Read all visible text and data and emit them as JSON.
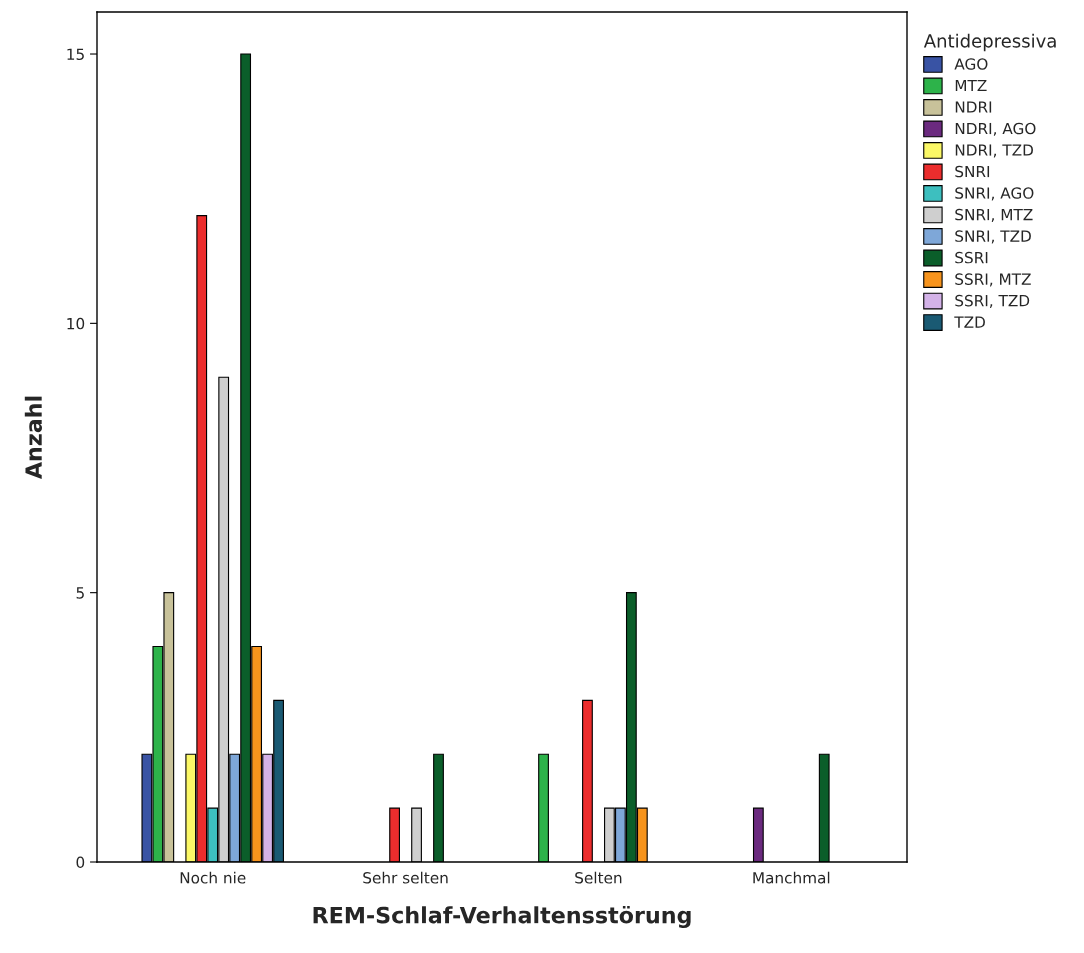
{
  "chart_data": {
    "type": "bar",
    "xlabel": "REM-Schlaf-Verhaltensstörung",
    "ylabel": "Anzahl",
    "legend_title": "Antidepressiva",
    "categories": [
      "Noch nie",
      "Sehr selten",
      "Selten",
      "Manchmal"
    ],
    "series": [
      {
        "name": "AGO",
        "color": "#3953a4",
        "values": [
          2,
          null,
          null,
          null
        ]
      },
      {
        "name": "MTZ",
        "color": "#2db34a",
        "values": [
          4,
          null,
          2,
          null
        ]
      },
      {
        "name": "NDRI",
        "color": "#c8c29a",
        "values": [
          5,
          null,
          null,
          null
        ]
      },
      {
        "name": "NDRI, AGO",
        "color": "#6b2a7f",
        "values": [
          null,
          null,
          null,
          1
        ]
      },
      {
        "name": "NDRI, TZD",
        "color": "#fbf866",
        "values": [
          2,
          null,
          null,
          null
        ]
      },
      {
        "name": "SNRI",
        "color": "#ec2d2d",
        "values": [
          12,
          1,
          3,
          null
        ]
      },
      {
        "name": "SNRI, AGO",
        "color": "#3dbfbf",
        "values": [
          1,
          null,
          null,
          null
        ]
      },
      {
        "name": "SNRI, MTZ",
        "color": "#cfcfcf",
        "values": [
          9,
          1,
          1,
          null
        ]
      },
      {
        "name": "SNRI, TZD",
        "color": "#7ea7d8",
        "values": [
          2,
          null,
          1,
          null
        ]
      },
      {
        "name": "SSRI",
        "color": "#0b5e2a",
        "values": [
          15,
          2,
          5,
          2
        ]
      },
      {
        "name": "SSRI, MTZ",
        "color": "#f7941d",
        "values": [
          4,
          null,
          1,
          null
        ]
      },
      {
        "name": "SSRI, TZD",
        "color": "#d3b2e8",
        "values": [
          2,
          null,
          null,
          null
        ]
      },
      {
        "name": "TZD",
        "color": "#1a5a73",
        "values": [
          3,
          null,
          null,
          null
        ]
      }
    ],
    "ylim": [
      0,
      15.78
    ],
    "yticks": [
      0,
      5,
      10,
      15
    ],
    "grid": false,
    "legend": "right"
  }
}
